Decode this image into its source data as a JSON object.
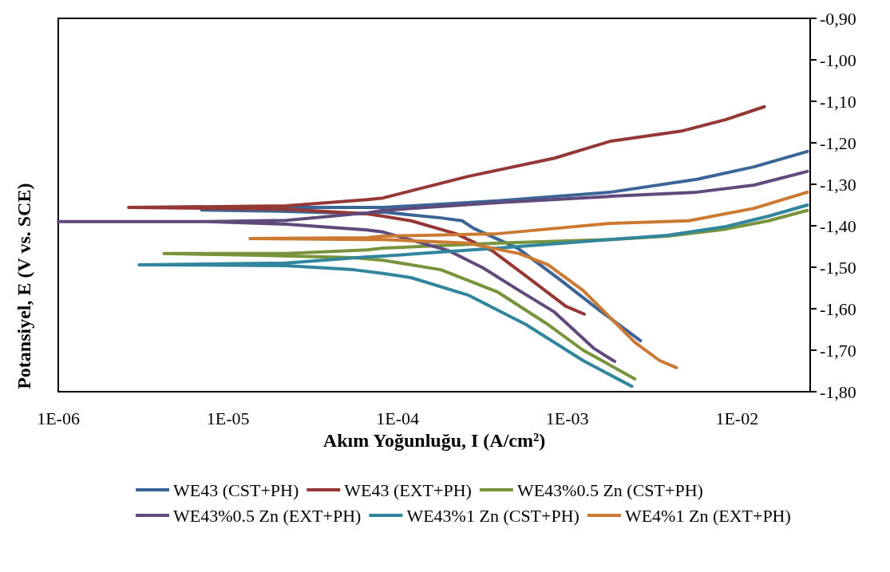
{
  "chart_data": {
    "type": "line",
    "xlabel": "Akım Yoğunluğu, I (A/cm²)",
    "ylabel": "Potansiyel, E (V vs. SCE)",
    "log": "x",
    "grid": false,
    "legend": "bottom",
    "marker": "none",
    "line_style": "solid",
    "xlim": [
      1e-06,
      0.027
    ],
    "xticks": [
      {
        "value": 1e-06,
        "label": "1E-06"
      },
      {
        "value": 1e-05,
        "label": "1E-05"
      },
      {
        "value": 0.0001,
        "label": "1E-04"
      },
      {
        "value": 0.001,
        "label": "1E-03"
      },
      {
        "value": 0.01,
        "label": "1E-02"
      }
    ],
    "ylim": [
      -1.8,
      -0.9
    ],
    "yticks": [
      {
        "value": -1.8,
        "label": "-1,80"
      },
      {
        "value": -1.7,
        "label": "-1,70"
      },
      {
        "value": -1.6,
        "label": "-1,60"
      },
      {
        "value": -1.5,
        "label": "-1,50"
      },
      {
        "value": -1.4,
        "label": "-1,40"
      },
      {
        "value": -1.3,
        "label": "-1,30"
      },
      {
        "value": -1.2,
        "label": "-1,20"
      },
      {
        "value": -1.1,
        "label": "-1,10"
      },
      {
        "value": -1.0,
        "label": "-1,00"
      },
      {
        "value": -0.9,
        "label": "-0,90"
      }
    ],
    "series": [
      {
        "name": "WE43 (CST+PH)",
        "color": "#3b6597",
        "x": [
          0.0027,
          0.00155,
          0.0009,
          0.00051,
          0.00028,
          0.00024,
          0.00018,
          8.2e-05,
          7e-05,
          2e-05,
          7e-06,
          2.2e-05,
          8.2e-05,
          0.00039,
          0.0018,
          0.0058,
          0.0126,
          0.026
        ],
        "values": [
          -1.677,
          -1.604,
          -1.529,
          -1.454,
          -1.406,
          -1.388,
          -1.381,
          -1.367,
          -1.371,
          -1.365,
          -1.362,
          -1.356,
          -1.356,
          -1.34,
          -1.319,
          -1.288,
          -1.258,
          -1.221
        ]
      },
      {
        "name": "WE43 (EXT+PH)",
        "color": "#953735",
        "x": [
          0.00126,
          0.00098,
          0.00057,
          0.00036,
          0.00022,
          0.00012,
          8.2e-05,
          6.6e-05,
          2.2e-05,
          2.6e-06,
          2.2e-05,
          6.6e-05,
          8.2e-05,
          0.00026,
          0.00084,
          0.0018,
          0.0048,
          0.0086,
          0.0145
        ],
        "values": [
          -1.613,
          -1.594,
          -1.521,
          -1.46,
          -1.419,
          -1.388,
          -1.377,
          -1.371,
          -1.36,
          -1.356,
          -1.352,
          -1.337,
          -1.333,
          -1.281,
          -1.237,
          -1.196,
          -1.171,
          -1.144,
          -1.113
        ]
      },
      {
        "name": "WE43%0.5 Zn (CST+PH)",
        "color": "#77933c",
        "x": [
          0.0025,
          0.00124,
          0.00075,
          0.00039,
          0.00018,
          8.2e-05,
          5.5e-05,
          1.57e-05,
          4.2e-06,
          2.2e-05,
          6.6e-05,
          8.2e-05,
          0.00039,
          0.0018,
          0.0039,
          0.0086,
          0.0153,
          0.026
        ],
        "values": [
          -1.769,
          -1.7,
          -1.635,
          -1.56,
          -1.506,
          -1.483,
          -1.477,
          -1.471,
          -1.467,
          -1.467,
          -1.458,
          -1.454,
          -1.442,
          -1.433,
          -1.425,
          -1.408,
          -1.388,
          -1.363
        ]
      },
      {
        "name": "WE43%0.5 Zn (EXT+PH)",
        "color": "#604a7b",
        "x": [
          0.0019,
          0.00144,
          0.00084,
          0.00052,
          0.00032,
          0.0002,
          8.2e-05,
          6.6e-05,
          2.2e-05,
          7.6e-06,
          1e-06,
          7.6e-06,
          2.2e-05,
          6.6e-05,
          8.2e-05,
          0.00039,
          0.0018,
          0.0058,
          0.0126,
          0.026
        ],
        "values": [
          -1.727,
          -1.696,
          -1.608,
          -1.556,
          -1.502,
          -1.46,
          -1.415,
          -1.41,
          -1.396,
          -1.39,
          -1.39,
          -1.39,
          -1.387,
          -1.369,
          -1.363,
          -1.344,
          -1.329,
          -1.319,
          -1.302,
          -1.269
        ]
      },
      {
        "name": "WE43%1 Zn (CST+PH)",
        "color": "#31859c",
        "x": [
          0.0024,
          0.00124,
          0.00057,
          0.00026,
          0.00012,
          8.2e-05,
          5.5e-05,
          2.2e-05,
          3e-06,
          2.2e-05,
          6.6e-05,
          8.2e-05,
          0.00039,
          0.0018,
          0.0039,
          0.0086,
          0.0153,
          0.026
        ],
        "values": [
          -1.787,
          -1.725,
          -1.638,
          -1.567,
          -1.525,
          -1.515,
          -1.506,
          -1.496,
          -1.494,
          -1.49,
          -1.475,
          -1.473,
          -1.454,
          -1.433,
          -1.423,
          -1.402,
          -1.377,
          -1.35
        ]
      },
      {
        "name": "WE4%1 Zn (EXT+PH)",
        "color": "#cc7a33",
        "x": [
          0.0044,
          0.0035,
          0.0025,
          0.00124,
          0.00077,
          0.00052,
          0.00026,
          8.2e-05,
          6.6e-05,
          1.35e-05,
          6.6e-05,
          8.2e-05,
          0.00039,
          0.0018,
          0.0052,
          0.0126,
          0.026
        ],
        "values": [
          -1.742,
          -1.725,
          -1.681,
          -1.556,
          -1.494,
          -1.467,
          -1.442,
          -1.433,
          -1.433,
          -1.431,
          -1.429,
          -1.425,
          -1.419,
          -1.394,
          -1.388,
          -1.358,
          -1.319
        ]
      }
    ]
  }
}
